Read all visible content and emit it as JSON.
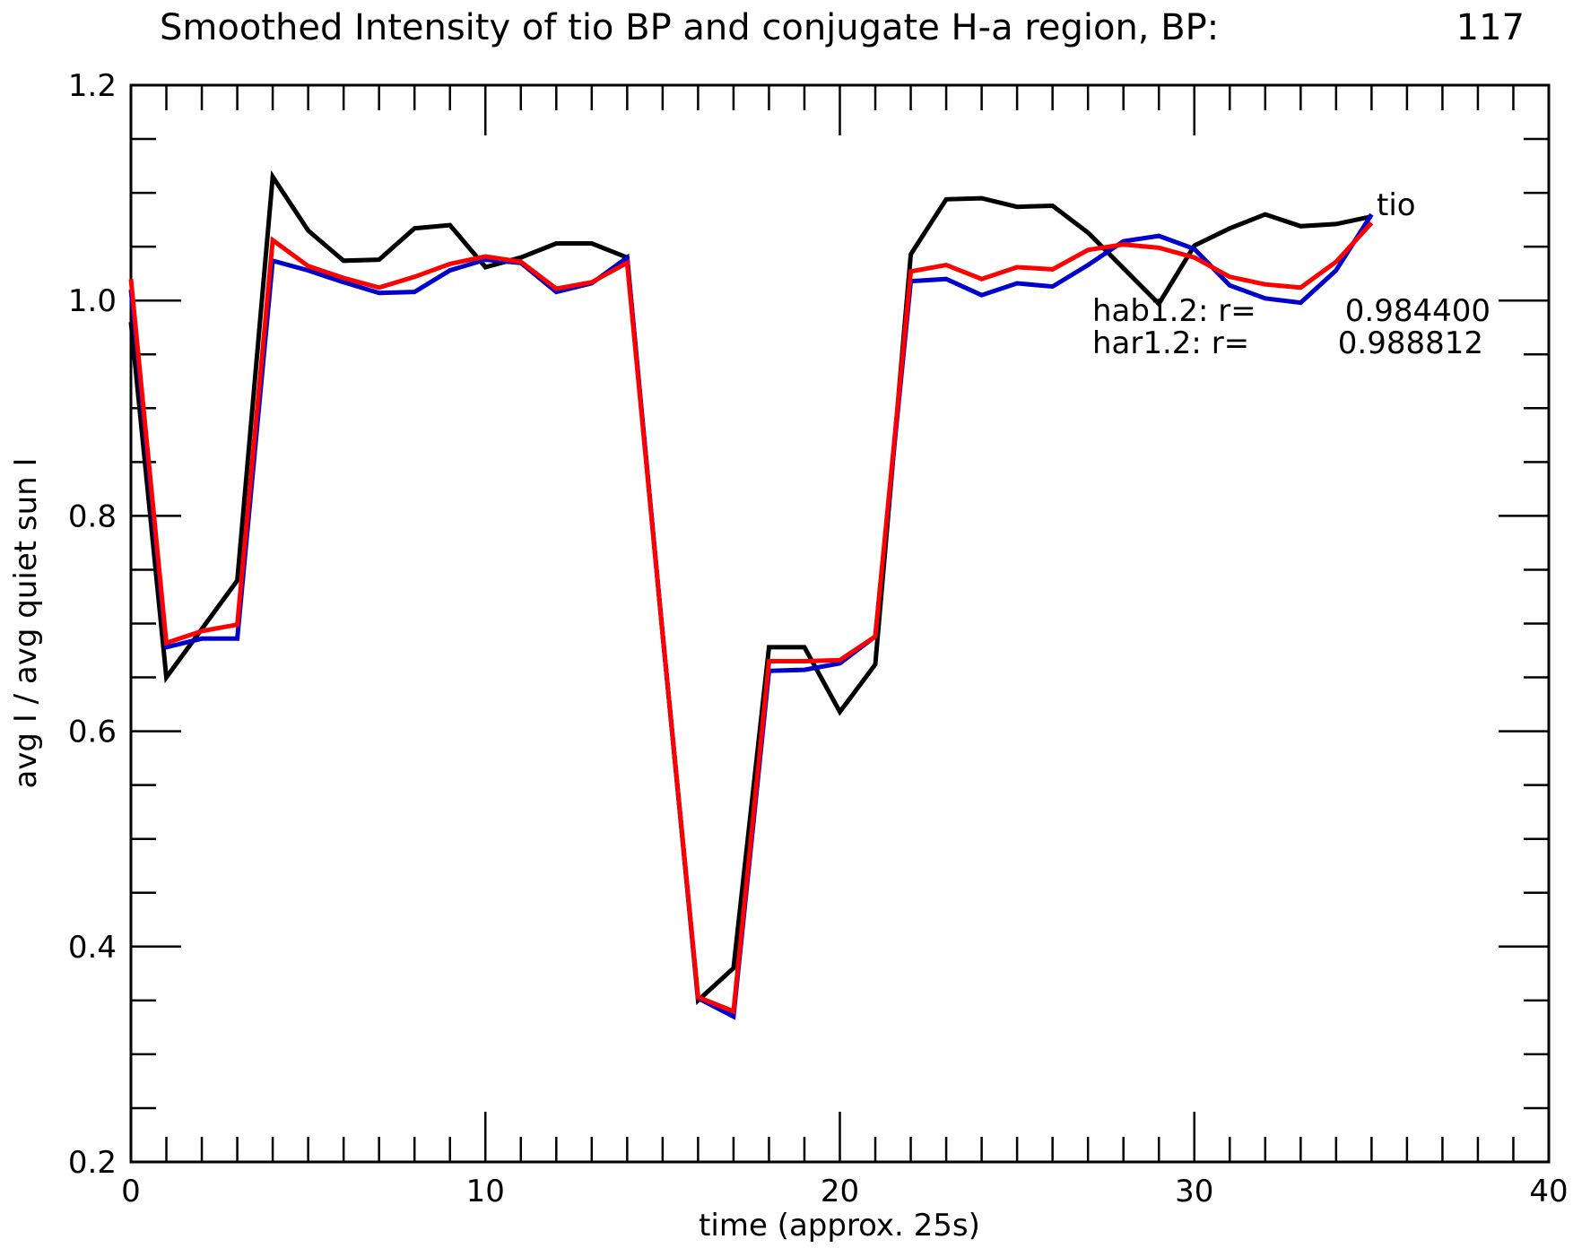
{
  "chart_data": {
    "type": "line",
    "title": "Smoothed Intensity of tio BP and conjugate H-a region, BP:",
    "title_number": "117",
    "xlabel": "time (approx. 25s)",
    "ylabel": "avg I / avg quiet sun I",
    "xlim": [
      0,
      40
    ],
    "ylim": [
      0.2,
      1.2
    ],
    "x_ticks": [
      0,
      10,
      20,
      30,
      40
    ],
    "x_tick_labels": [
      "0",
      "10",
      "20",
      "30",
      "40"
    ],
    "y_ticks": [
      0.2,
      0.4,
      0.6,
      0.8,
      1.0,
      1.2
    ],
    "y_tick_labels": [
      "0.2",
      "0.4",
      "0.6",
      "0.8",
      "1.0",
      "1.2"
    ],
    "grid": false,
    "x": [
      0,
      1,
      2,
      3,
      4,
      5,
      6,
      7,
      8,
      9,
      10,
      11,
      12,
      13,
      14,
      15,
      16,
      17,
      18,
      19,
      20,
      21,
      22,
      23,
      24,
      25,
      26,
      27,
      28,
      29,
      30,
      31,
      32,
      33,
      34,
      35
    ],
    "series": [
      {
        "color": "#000000",
        "values": [
          0.98,
          0.65,
          0.695,
          0.74,
          1.115,
          1.065,
          1.037,
          1.038,
          1.067,
          1.07,
          1.031,
          1.04,
          1.053,
          1.053,
          1.04,
          0.69,
          0.35,
          0.38,
          0.678,
          0.678,
          0.618,
          0.662,
          1.043,
          1.094,
          1.095,
          1.087,
          1.088,
          1.063,
          1.03,
          0.997,
          1.051,
          1.067,
          1.08,
          1.069,
          1.071,
          1.078
        ]
      },
      {
        "color": "#0000cc",
        "values": [
          1.01,
          0.678,
          0.686,
          0.686,
          1.037,
          1.028,
          1.017,
          1.007,
          1.008,
          1.028,
          1.038,
          1.035,
          1.008,
          1.016,
          1.04,
          0.69,
          0.352,
          0.335,
          0.656,
          0.657,
          0.663,
          0.688,
          1.018,
          1.02,
          1.005,
          1.016,
          1.013,
          1.033,
          1.055,
          1.06,
          1.048,
          1.014,
          1.002,
          0.998,
          1.028,
          1.08
        ]
      },
      {
        "color": "#ff0000",
        "values": [
          1.02,
          0.682,
          0.693,
          0.699,
          1.056,
          1.032,
          1.021,
          1.012,
          1.022,
          1.034,
          1.041,
          1.036,
          1.011,
          1.017,
          1.035,
          0.69,
          0.353,
          0.34,
          0.665,
          0.665,
          0.666,
          0.688,
          1.027,
          1.033,
          1.02,
          1.031,
          1.029,
          1.047,
          1.052,
          1.049,
          1.04,
          1.022,
          1.015,
          1.012,
          1.036,
          1.072
        ]
      }
    ],
    "annotations": {
      "series_label": "tio",
      "hab_label": "hab1.2: r=",
      "hab_value": "0.984400",
      "har_label": "har1.2: r=",
      "har_value": "0.988812"
    }
  }
}
